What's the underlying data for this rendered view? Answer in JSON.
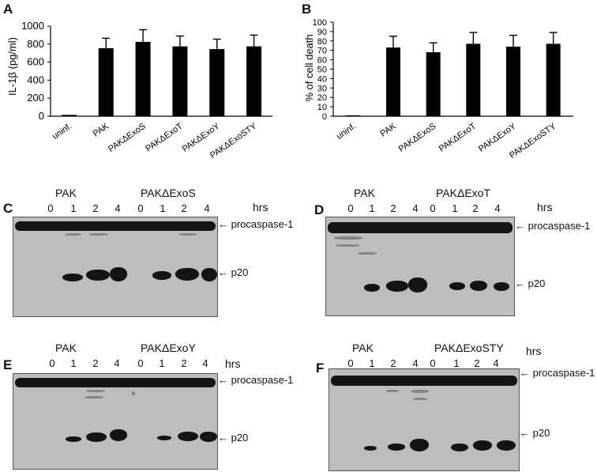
{
  "panels": {
    "A": {
      "letter": "A",
      "chart_data": {
        "type": "bar",
        "ylabel": "IL-1β (pg/ml)",
        "categories": [
          "uninf.",
          "PAK",
          "PAKΔExoS",
          "PAKΔExoT",
          "PAKΔExoY",
          "PAKΔExoSTY"
        ],
        "values": [
          15,
          755,
          825,
          775,
          745,
          775
        ],
        "errors": [
          0,
          110,
          135,
          115,
          110,
          125
        ],
        "ylim": [
          0,
          1000
        ],
        "yticks": [
          "0",
          "200",
          "400",
          "600",
          "800",
          "1000"
        ]
      }
    },
    "B": {
      "letter": "B",
      "chart_data": {
        "type": "bar",
        "ylabel": "% of cell death",
        "categories": [
          "uninf.",
          "PAK",
          "PAKΔExoS",
          "PAKΔExoT",
          "PAKΔExoY",
          "PAKΔExoSTY"
        ],
        "values": [
          1,
          73,
          68,
          77,
          74,
          77
        ],
        "errors": [
          0,
          12,
          10,
          12,
          12,
          12
        ],
        "ylim": [
          0,
          100
        ],
        "yticks": [
          "0",
          "10",
          "20",
          "30",
          "40",
          "50",
          "60",
          "70",
          "80",
          "90",
          "100"
        ]
      }
    },
    "C": {
      "letter": "C",
      "strain1": "PAK",
      "strain2": "PAKΔExoS",
      "hrs": "hrs",
      "lanes": [
        "0",
        "1",
        "2",
        "4",
        "0",
        "1",
        "2",
        "4"
      ],
      "procaspase": "procaspase-1",
      "p20": "p20"
    },
    "D": {
      "letter": "D",
      "strain1": "PAK",
      "strain2": "PAKΔExoT",
      "hrs": "hrs",
      "lanes": [
        "0",
        "1",
        "2",
        "4",
        "0",
        "1",
        "2",
        "4"
      ],
      "procaspase": "procaspase-1",
      "p20": "p20"
    },
    "E": {
      "letter": "E",
      "strain1": "PAK",
      "strain2": "PAKΔExoY",
      "hrs": "hrs",
      "lanes": [
        "0",
        "1",
        "2",
        "4",
        "0",
        "1",
        "2",
        "4"
      ],
      "procaspase": "procaspase-1",
      "p20": "p20"
    },
    "F": {
      "letter": "F",
      "strain1": "PAK",
      "strain2": "PAKΔExoSTY",
      "hrs": "hrs",
      "lanes": [
        "0",
        "1",
        "2",
        "4",
        "0",
        "1",
        "2",
        "4"
      ],
      "procaspase": "procaspase-1",
      "p20": "p20"
    }
  }
}
